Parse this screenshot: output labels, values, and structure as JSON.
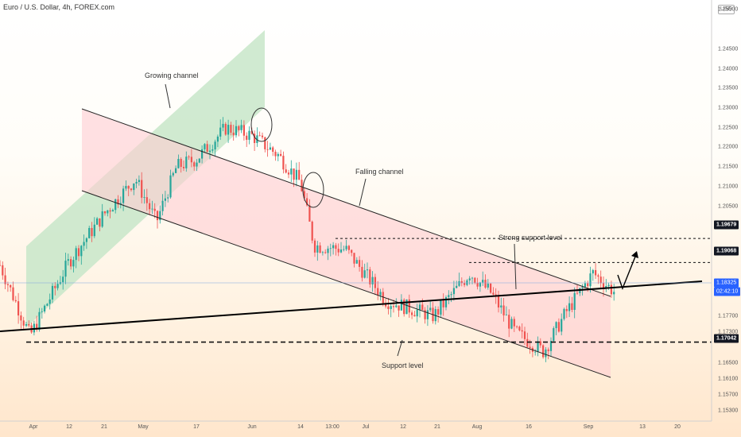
{
  "header": {
    "title": "Euro / U.S. Dollar, 4h, FOREX.com"
  },
  "currency_button": "USD",
  "price_badges": {
    "p1": "1.19679",
    "p2": "1.19068",
    "p3": "1.18325",
    "timer": "02:42:10",
    "p4": "1.17042"
  },
  "annotations": {
    "growing": "Growing channel",
    "falling": "Falling channel",
    "strong_support": "Strong support level",
    "support": "Support level"
  },
  "colors": {
    "up": "#26a69a",
    "down": "#ef5350",
    "channel_green": "#c8e6c9",
    "channel_red": "#ffcdd2",
    "line": "#000000",
    "badge_blue": "#2962ff"
  },
  "chart_data": {
    "type": "candlestick",
    "title": "Euro / U.S. Dollar, 4h, FOREX.com",
    "y_axis_ticks": [
      "1.25500",
      "1.24500",
      "1.24000",
      "1.23500",
      "1.23000",
      "1.22500",
      "1.22000",
      "1.21500",
      "1.21000",
      "1.20500",
      "1.20000",
      "1.19300",
      "1.18500",
      "1.17700",
      "1.17300",
      "1.16500",
      "1.16100",
      "1.15700",
      "1.15300"
    ],
    "x_axis_ticks": [
      "Apr",
      "12",
      "21",
      "May",
      "17",
      "Jun",
      "14",
      "13:00",
      "Jul",
      "12",
      "21",
      "Aug",
      "16",
      "Sep",
      "13",
      "20"
    ],
    "ylim": [
      1.1503,
      1.2575
    ],
    "approx_close_path": [
      {
        "date": "2021-03-22",
        "close": 1.19
      },
      {
        "date": "2021-03-31",
        "close": 1.172
      },
      {
        "date": "2021-04-12",
        "close": 1.191
      },
      {
        "date": "2021-04-21",
        "close": 1.203
      },
      {
        "date": "2021-04-29",
        "close": 1.212
      },
      {
        "date": "2021-05-05",
        "close": 1.201
      },
      {
        "date": "2021-05-11",
        "close": 1.215
      },
      {
        "date": "2021-05-17",
        "close": 1.217
      },
      {
        "date": "2021-05-25",
        "close": 1.225
      },
      {
        "date": "2021-06-01",
        "close": 1.223
      },
      {
        "date": "2021-06-08",
        "close": 1.218
      },
      {
        "date": "2021-06-14",
        "close": 1.211
      },
      {
        "date": "2021-06-17",
        "close": 1.195
      },
      {
        "date": "2021-06-25",
        "close": 1.194
      },
      {
        "date": "2021-07-07",
        "close": 1.181
      },
      {
        "date": "2021-07-20",
        "close": 1.177
      },
      {
        "date": "2021-07-30",
        "close": 1.188
      },
      {
        "date": "2021-08-05",
        "close": 1.183
      },
      {
        "date": "2021-08-12",
        "close": 1.173
      },
      {
        "date": "2021-08-20",
        "close": 1.168
      },
      {
        "date": "2021-08-26",
        "close": 1.178
      },
      {
        "date": "2021-09-02",
        "close": 1.188
      },
      {
        "date": "2021-09-07",
        "close": 1.183
      }
    ],
    "levels": [
      {
        "label": "1.19679",
        "value": 1.19679,
        "style": "dashed"
      },
      {
        "label": "1.19068",
        "value": 1.19068,
        "style": "dashed"
      },
      {
        "label": "1.17042",
        "value": 1.17042,
        "style": "dashed"
      }
    ],
    "current_price": 1.18325,
    "legend": "none",
    "grid": false
  }
}
